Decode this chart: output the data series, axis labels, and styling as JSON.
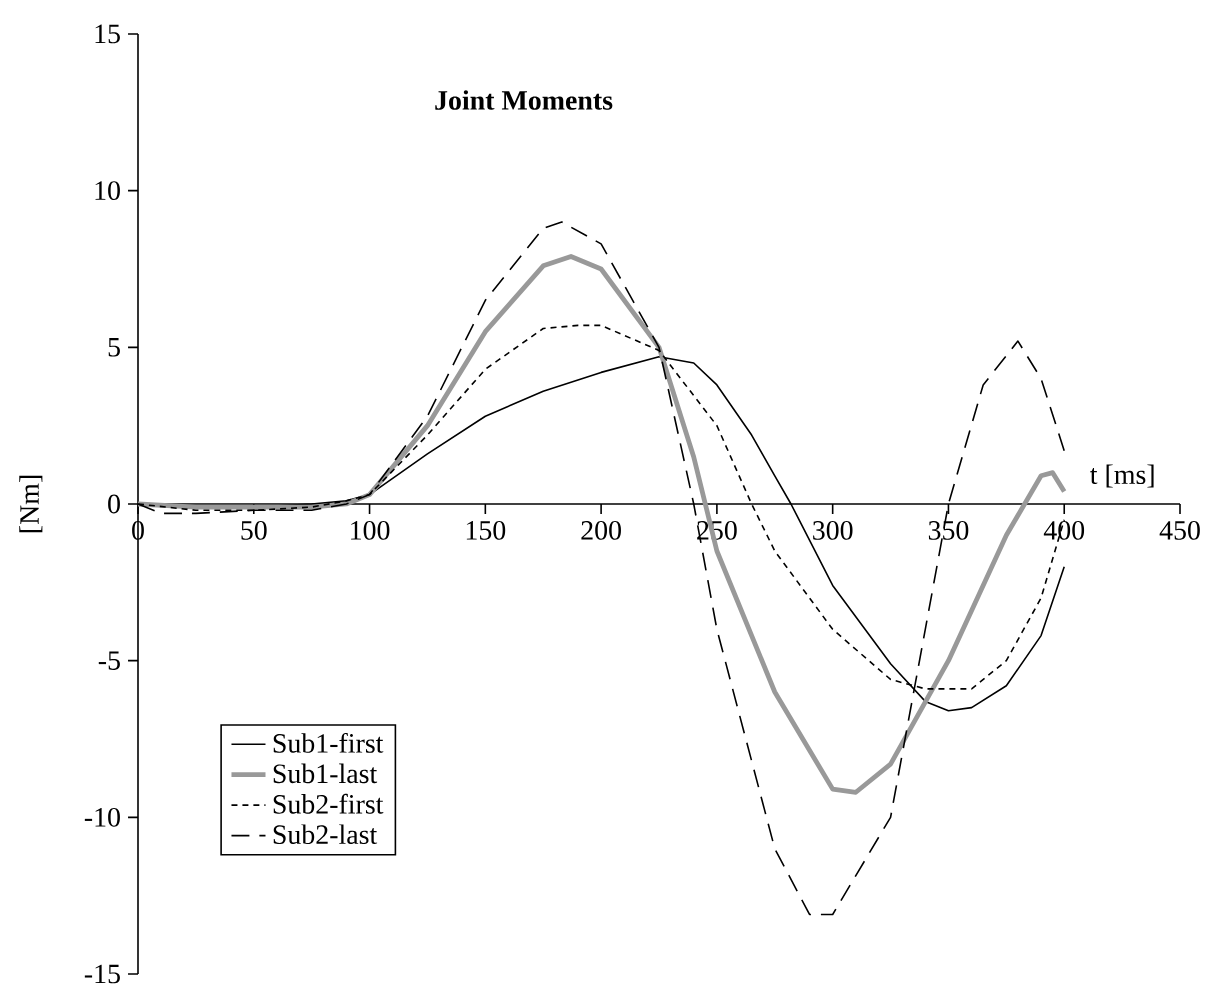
{
  "chart_data": {
    "type": "line",
    "title": "Joint Moments",
    "xlabel": "t [ms]",
    "ylabel": "[Nm]",
    "xlim": [
      0,
      450
    ],
    "ylim": [
      -15,
      15
    ],
    "xticks": [
      0,
      50,
      100,
      150,
      200,
      250,
      300,
      350,
      400,
      450
    ],
    "yticks": [
      -15,
      -10,
      -5,
      0,
      5,
      10,
      15
    ],
    "legend": "bottom left",
    "series": [
      {
        "name": "Sub1-first",
        "color": "#000000",
        "line_style": "solid",
        "x": [
          0,
          25,
          50,
          75,
          90,
          100,
          125,
          150,
          175,
          200,
          225,
          240,
          250,
          265,
          275,
          282,
          300,
          325,
          340,
          350,
          360,
          375,
          390,
          400
        ],
        "values": [
          0,
          -0.1,
          -0.1,
          0,
          0.1,
          0.3,
          1.6,
          2.8,
          3.6,
          4.2,
          4.7,
          4.5,
          3.8,
          2.2,
          0.9,
          0,
          -2.6,
          -5.1,
          -6.3,
          -6.6,
          -6.5,
          -5.8,
          -4.2,
          -2
        ]
      },
      {
        "name": "Sub1-last",
        "color": "#999999",
        "line_style": "solid",
        "x": [
          0,
          25,
          50,
          75,
          90,
          100,
          125,
          150,
          175,
          187,
          200,
          225,
          240,
          250,
          275,
          300,
          310,
          325,
          350,
          375,
          390,
          395,
          400
        ],
        "values": [
          0,
          -0.1,
          -0.1,
          -0.1,
          0,
          0.3,
          2.5,
          5.5,
          7.6,
          7.9,
          7.5,
          5,
          1.5,
          -1.5,
          -6,
          -9.1,
          -9.2,
          -8.3,
          -5,
          -1,
          0.9,
          1,
          0.4
        ]
      },
      {
        "name": "Sub2-first",
        "color": "#000000",
        "line_style": "dotted",
        "x": [
          0,
          25,
          50,
          75,
          90,
          100,
          125,
          150,
          175,
          190,
          200,
          225,
          250,
          265,
          275,
          300,
          325,
          340,
          360,
          375,
          390,
          400
        ],
        "values": [
          0,
          -0.2,
          -0.2,
          -0.1,
          0.1,
          0.3,
          2.2,
          4.3,
          5.6,
          5.7,
          5.7,
          4.9,
          2.5,
          0,
          -1.5,
          -4,
          -5.6,
          -5.9,
          -5.9,
          -5,
          -3,
          -0.5
        ]
      },
      {
        "name": "Sub2-last",
        "color": "#000000",
        "line_style": "dashed",
        "x": [
          0,
          10,
          25,
          50,
          75,
          90,
          100,
          125,
          150,
          175,
          183,
          200,
          225,
          240,
          250,
          275,
          290,
          300,
          325,
          340,
          350,
          365,
          380,
          390,
          400
        ],
        "values": [
          0,
          -0.3,
          -0.3,
          -0.2,
          -0.2,
          0,
          0.3,
          2.8,
          6.5,
          8.8,
          9,
          8.3,
          5,
          0,
          -4,
          -11,
          -13.1,
          -13.1,
          -10,
          -4,
          0,
          3.8,
          5.2,
          4,
          1.7
        ]
      }
    ]
  }
}
